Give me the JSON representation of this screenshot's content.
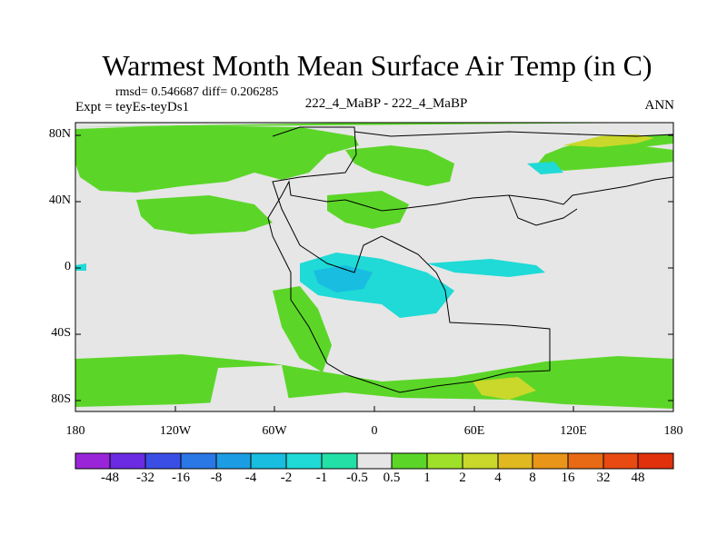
{
  "figure": {
    "title": "Warmest Month Mean Surface Air Temp (in C)",
    "rmsd_line": "rmsd= 0.546687 diff= 0.206285",
    "expt_line": "Expt = teyEs-teyDs1",
    "center_label": "222_4_MaBP - 222_4_MaBP",
    "season": "ANN"
  },
  "map": {
    "y_ticks": [
      "80N",
      "40N",
      "0",
      "40S",
      "80S"
    ],
    "x_ticks": [
      "180",
      "120W",
      "60W",
      "0",
      "60E",
      "120E",
      "180"
    ],
    "land_outline": "black",
    "ocean_background": "light gray"
  },
  "colorbar": {
    "labels": [
      "-48",
      "-32",
      "-16",
      "-8",
      "-4",
      "-2",
      "-1",
      "-0.5",
      "0.5",
      "1",
      "2",
      "4",
      "8",
      "16",
      "32",
      "48"
    ],
    "colors": [
      "#9a25d8",
      "#6a2be3",
      "#3a4ee6",
      "#2a77e6",
      "#1c9de3",
      "#18bde0",
      "#1fdad6",
      "#23e0a6",
      "#e6e6e6",
      "#5bd628",
      "#9fe02a",
      "#c9d82a",
      "#e0b820",
      "#e89519",
      "#e86a14",
      "#e84a12",
      "#e0300c"
    ]
  }
}
